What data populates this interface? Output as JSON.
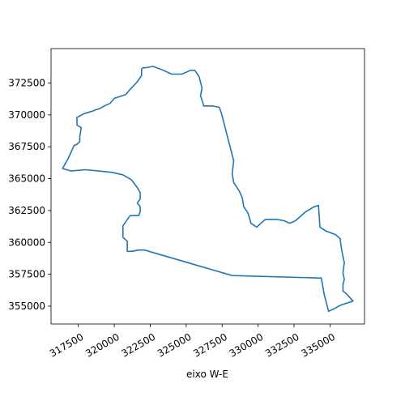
{
  "chart_data": {
    "type": "line",
    "title": "",
    "xlabel": "eixo W-E",
    "ylabel": "",
    "xlim": [
      315600,
      337400
    ],
    "ylim": [
      353600,
      375200
    ],
    "xticks": [
      317500,
      320000,
      322500,
      325000,
      327500,
      330000,
      332500,
      335000
    ],
    "yticks": [
      355000,
      357500,
      360000,
      362500,
      365000,
      367500,
      370000,
      372500
    ],
    "xtick_labels": [
      "317500",
      "320000",
      "322500",
      "325000",
      "327500",
      "330000",
      "332500",
      "335000"
    ],
    "ytick_labels": [
      "355000",
      "357500",
      "360000",
      "362500",
      "365000",
      "367500",
      "370000",
      "372500"
    ],
    "grid": false,
    "series": [
      {
        "color": "#1f77b4",
        "x": [
          322200,
          322700,
          323200,
          324000,
          324700,
          325300,
          325600,
          325900,
          326100,
          326000,
          326200,
          326200,
          326300,
          326800,
          327300,
          327400,
          327500,
          328300,
          328200,
          328300,
          328700,
          328900,
          329000,
          329300,
          329500,
          329900,
          330500,
          331300,
          331800,
          332200,
          332600,
          333300,
          333900,
          334200,
          334300,
          334700,
          335400,
          335700,
          335800,
          335900,
          336000,
          335900,
          336000,
          335900,
          335900,
          336200,
          336600,
          335800,
          335600,
          335300,
          334900,
          334600,
          334400,
          328200,
          322100,
          321700,
          321200,
          320900,
          320900,
          320600,
          320600,
          320600,
          321100,
          321700,
          321800,
          321800,
          321600,
          321800,
          321800,
          321600,
          321200,
          320600,
          319800,
          318900,
          318000,
          317000,
          316400,
          316600,
          316800,
          317000,
          317200,
          317400,
          317600,
          317600,
          317700,
          317400,
          317400,
          317400,
          317900,
          318500,
          318700,
          319000,
          319300,
          319700,
          320000,
          320800,
          321100,
          321600,
          321900,
          321900,
          322000,
          322200
        ],
        "y": [
          373700,
          373800,
          373600,
          373200,
          373200,
          373500,
          373500,
          373000,
          372100,
          371500,
          370800,
          370700,
          370700,
          370700,
          370600,
          370300,
          369900,
          366400,
          365400,
          364700,
          364000,
          363500,
          362800,
          362300,
          361500,
          361200,
          361800,
          361800,
          361700,
          361500,
          361700,
          362400,
          362800,
          362900,
          361200,
          360900,
          360600,
          360300,
          359500,
          358900,
          358400,
          357600,
          357100,
          356700,
          356200,
          355900,
          355400,
          355100,
          355000,
          354800,
          354600,
          355900,
          357200,
          357400,
          359400,
          359400,
          359300,
          359300,
          360100,
          360400,
          361000,
          361300,
          362100,
          362100,
          362400,
          362800,
          363100,
          363400,
          363900,
          364300,
          364900,
          365300,
          365500,
          365600,
          365700,
          365600,
          365800,
          366200,
          366600,
          367100,
          367600,
          367700,
          367900,
          368300,
          369000,
          369200,
          369500,
          369800,
          370100,
          370300,
          370400,
          370500,
          370700,
          370900,
          371300,
          371600,
          372000,
          372600,
          373100,
          373600,
          373700,
          373700
        ]
      }
    ]
  }
}
